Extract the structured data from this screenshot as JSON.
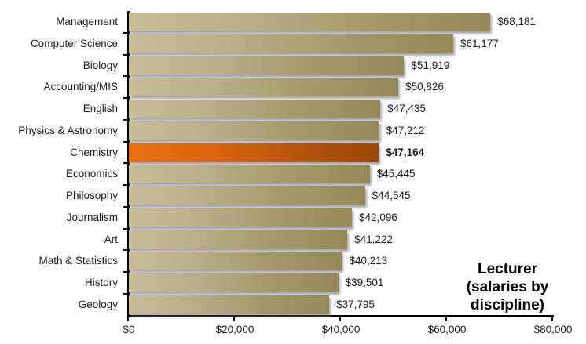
{
  "chart_data": {
    "type": "bar",
    "orientation": "horizontal",
    "title": "Lecturer",
    "subtitle": "(salaries by discipline)",
    "xlabel": "",
    "ylabel": "",
    "xlim": [
      0,
      80000
    ],
    "grid": false,
    "legend": null,
    "highlight_category": "Chemistry",
    "highlight_color": "#e06a10",
    "bar_color": "#b0a67a",
    "categories": [
      "Management",
      "Computer Science",
      "Biology",
      "Accounting/MIS",
      "English",
      "Physics & Astronomy",
      "Chemistry",
      "Economics",
      "Philosophy",
      "Journalism",
      "Art",
      "Math & Statistics",
      "History",
      "Geology"
    ],
    "values": [
      68181,
      61177,
      51919,
      50826,
      47435,
      47212,
      47164,
      45445,
      44545,
      42096,
      41222,
      40213,
      39501,
      37795
    ],
    "value_labels": [
      "$68,181",
      "$61,177",
      "$51,919",
      "$50,826",
      "$47,435",
      "$47,212",
      "$47,164",
      "$45,445",
      "$44,545",
      "$42,096",
      "$41,222",
      "$40,213",
      "$39,501",
      "$37,795"
    ],
    "x_ticks": [
      0,
      20000,
      40000,
      60000,
      80000
    ],
    "x_tick_labels": [
      "$0",
      "$20,000",
      "$40,000",
      "$60,000",
      "$80,000"
    ]
  },
  "title": {
    "line1": "Lecturer",
    "line2": "(salaries by discipline)"
  }
}
